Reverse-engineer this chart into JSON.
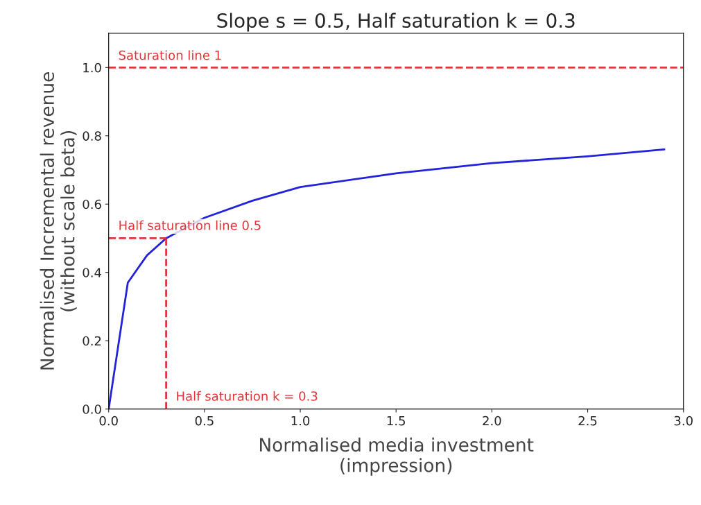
{
  "chart_data": {
    "type": "line",
    "title": "Slope s = 0.5, Half saturation k = 0.3",
    "xlabel": "Normalised media investment\n(impression)",
    "ylabel": "Normalised Incremental revenue\n(without scale beta)",
    "series": [
      {
        "color": "#2323d8",
        "x": [
          0,
          0.1,
          0.2,
          0.3,
          0.5,
          0.75,
          1.0,
          1.5,
          2.0,
          2.5,
          2.9
        ],
        "values": [
          0,
          0.37,
          0.45,
          0.5,
          0.56,
          0.61,
          0.65,
          0.69,
          0.72,
          0.74,
          0.76
        ],
        "line_style": "solid"
      },
      {
        "color": "#e0353a",
        "x": [
          0,
          0.3
        ],
        "values": [
          0.5,
          0.5
        ],
        "line_style": "dashed"
      },
      {
        "color": "#e0353a",
        "x": [
          0.3,
          0.3
        ],
        "values": [
          0,
          0.5
        ],
        "line_style": "dashed"
      }
    ],
    "ref_lines": [
      {
        "axis": "y",
        "value": 1.0,
        "label": "Saturation line 1",
        "color": "#e0353a",
        "line_style": "dashed"
      }
    ],
    "annotations": [
      {
        "text": "Half saturation line 0.5",
        "x": 0,
        "y": 0.5
      },
      {
        "text": "Half saturation k = 0.3",
        "x": 0.3,
        "y": 0
      }
    ],
    "xlim": [
      0,
      3.0
    ],
    "ylim": [
      0,
      1.1
    ],
    "xticks": [
      {
        "value": 0,
        "label": "0.0"
      },
      {
        "value": 0.5,
        "label": "0.5"
      },
      {
        "value": 1.0,
        "label": "1.0"
      },
      {
        "value": 1.5,
        "label": "1.5"
      },
      {
        "value": 2.0,
        "label": "2.0"
      },
      {
        "value": 2.5,
        "label": "2.5"
      },
      {
        "value": 3.0,
        "label": "3.0"
      }
    ],
    "yticks": [
      {
        "value": 0,
        "label": "0.0"
      },
      {
        "value": 0.2,
        "label": "0.2"
      },
      {
        "value": 0.4,
        "label": "0.4"
      },
      {
        "value": 0.6,
        "label": "0.6"
      },
      {
        "value": 0.8,
        "label": "0.8"
      },
      {
        "value": 1.0,
        "label": "1.0"
      }
    ],
    "grid": false
  }
}
